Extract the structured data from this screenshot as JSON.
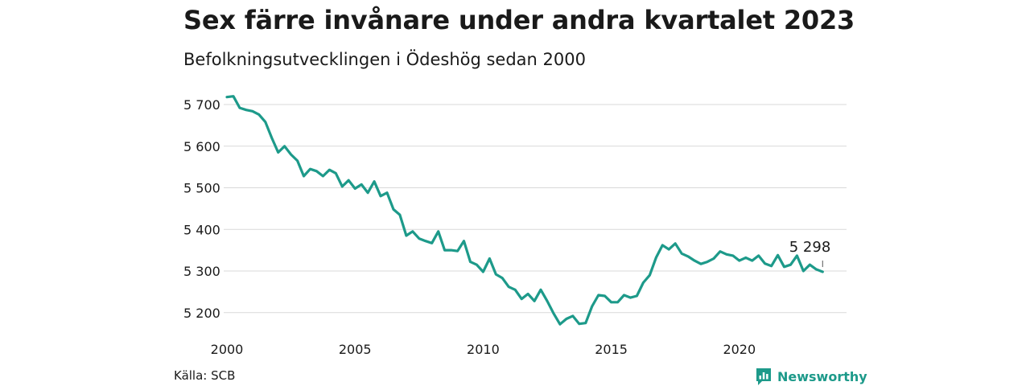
{
  "header": {
    "title": "Sex färre invånare under andra kvartalet 2023",
    "subtitle": "Befolkningsutvecklingen i Ödeshög sedan 2000"
  },
  "footer": {
    "source": "Källa: SCB",
    "brand": "Newsworthy",
    "brand_icon": "bar-chart-icon"
  },
  "colors": {
    "line": "#1d9a8a",
    "grid": "#d9d9d9",
    "text": "#1a1a1a"
  },
  "chart_data": {
    "type": "line",
    "title": "Sex färre invånare under andra kvartalet 2023",
    "subtitle": "Befolkningsutvecklingen i Ödeshög sedan 2000",
    "xlabel": "",
    "ylabel": "",
    "xlim": [
      2000,
      2023.75
    ],
    "ylim": [
      5160,
      5730
    ],
    "grid": true,
    "legend": "none",
    "x_ticks": [
      {
        "value": 2000,
        "label": "2000"
      },
      {
        "value": 2005,
        "label": "2005"
      },
      {
        "value": 2010,
        "label": "2010"
      },
      {
        "value": 2015,
        "label": "2015"
      },
      {
        "value": 2020,
        "label": "2020"
      }
    ],
    "y_ticks": [
      {
        "value": 5200,
        "label": "5 200"
      },
      {
        "value": 5300,
        "label": "5 300"
      },
      {
        "value": 5400,
        "label": "5 400"
      },
      {
        "value": 5500,
        "label": "5 500"
      },
      {
        "value": 5600,
        "label": "5 600"
      },
      {
        "value": 5700,
        "label": "5 700"
      }
    ],
    "end_label": "5 298",
    "series": [
      {
        "frequency": "quarterly",
        "start": "2000 Q1",
        "end": "2023 Q2",
        "values": [
          5718,
          5720,
          5692,
          5687,
          5684,
          5676,
          5658,
          5620,
          5585,
          5600,
          5580,
          5565,
          5528,
          5545,
          5540,
          5528,
          5543,
          5535,
          5503,
          5518,
          5498,
          5508,
          5488,
          5515,
          5480,
          5488,
          5448,
          5435,
          5385,
          5395,
          5378,
          5372,
          5367,
          5395,
          5350,
          5350,
          5348,
          5372,
          5322,
          5315,
          5298,
          5330,
          5292,
          5283,
          5262,
          5255,
          5233,
          5245,
          5228,
          5255,
          5228,
          5198,
          5172,
          5185,
          5192,
          5173,
          5175,
          5215,
          5242,
          5240,
          5225,
          5225,
          5242,
          5236,
          5240,
          5272,
          5290,
          5332,
          5362,
          5352,
          5366,
          5342,
          5335,
          5325,
          5317,
          5322,
          5330,
          5347,
          5340,
          5337,
          5325,
          5332,
          5325,
          5337,
          5318,
          5312,
          5338,
          5310,
          5315,
          5337,
          5300,
          5315,
          5304,
          5298
        ]
      }
    ]
  }
}
